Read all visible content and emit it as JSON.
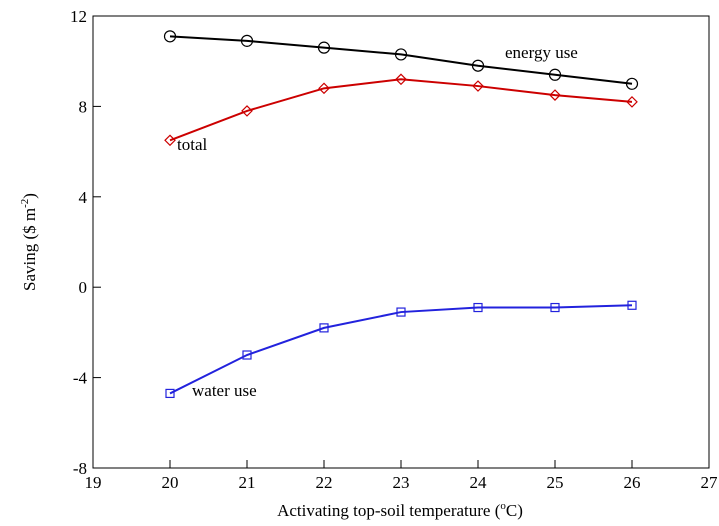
{
  "chart_data": {
    "type": "line",
    "xlabel": {
      "text": "Activating top-soil temperature (",
      "sup": "o",
      "end": "C)"
    },
    "ylabel": {
      "text": "Saving ($ m",
      "sup": "-2",
      "end": ")"
    },
    "x": [
      20,
      21,
      22,
      23,
      24,
      25,
      26
    ],
    "series": [
      {
        "name": "energy use",
        "color": "#000000",
        "marker": "circle",
        "values": [
          11.1,
          10.9,
          10.6,
          10.3,
          9.8,
          9.4,
          9.0
        ]
      },
      {
        "name": "total",
        "color": "#cc0000",
        "marker": "diamond",
        "values": [
          6.5,
          7.8,
          8.8,
          9.2,
          8.9,
          8.5,
          8.2
        ]
      },
      {
        "name": "water use",
        "color": "#2222dd",
        "marker": "square",
        "values": [
          -4.7,
          -3.0,
          -1.8,
          -1.1,
          -0.9,
          -0.9,
          -0.8
        ]
      }
    ],
    "xlim": [
      19,
      27
    ],
    "xticks": [
      19,
      20,
      21,
      22,
      23,
      24,
      25,
      26,
      27
    ],
    "ylim": [
      -8,
      12
    ],
    "yticks": [
      -8,
      -4,
      0,
      4,
      8,
      12
    ],
    "grid": false
  }
}
